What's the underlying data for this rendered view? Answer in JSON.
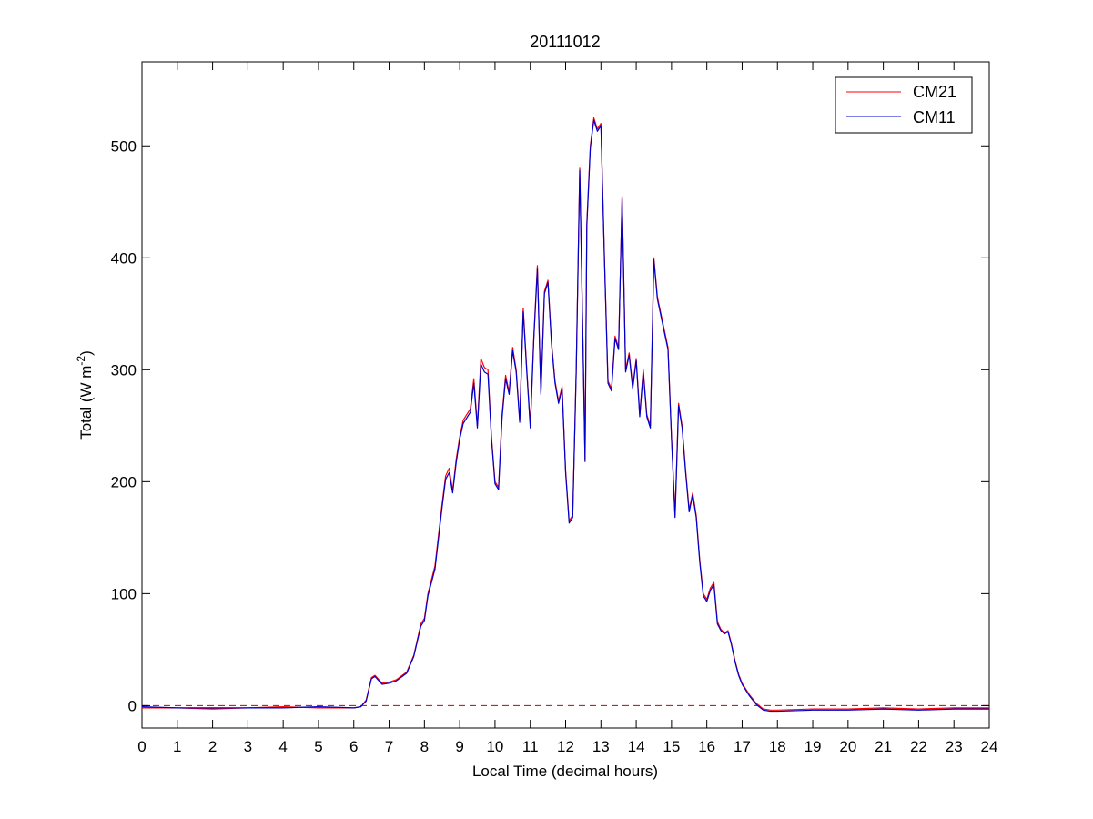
{
  "chart_data": {
    "type": "line",
    "title": "20111012",
    "xlabel": "Local Time (decimal hours)",
    "ylabel_main": "Total (W m",
    "ylabel_sup": "-2",
    "ylabel_close": ")",
    "xlim": [
      0,
      24
    ],
    "ylim": [
      -20,
      575
    ],
    "x_ticks": [
      0,
      1,
      2,
      3,
      4,
      5,
      6,
      7,
      8,
      9,
      10,
      11,
      12,
      13,
      14,
      15,
      16,
      17,
      18,
      19,
      20,
      21,
      22,
      23,
      24
    ],
    "y_ticks": [
      0,
      100,
      200,
      300,
      400,
      500
    ],
    "grid": false,
    "legend_position": "top-right",
    "reference_line": {
      "y": 0,
      "style": "dashed",
      "color": "#cc0000"
    },
    "series": [
      {
        "name": "CM21",
        "color": "#ff0000",
        "points": [
          [
            0,
            -2
          ],
          [
            1,
            -2
          ],
          [
            2,
            -3
          ],
          [
            3,
            -2
          ],
          [
            4,
            -1
          ],
          [
            5,
            -2
          ],
          [
            6,
            -2
          ],
          [
            6.2,
            -1
          ],
          [
            6.35,
            5
          ],
          [
            6.5,
            25
          ],
          [
            6.6,
            27
          ],
          [
            6.8,
            20
          ],
          [
            7.0,
            21
          ],
          [
            7.2,
            23
          ],
          [
            7.5,
            30
          ],
          [
            7.7,
            45
          ],
          [
            7.9,
            73
          ],
          [
            8.0,
            78
          ],
          [
            8.1,
            100
          ],
          [
            8.3,
            125
          ],
          [
            8.5,
            180
          ],
          [
            8.6,
            205
          ],
          [
            8.7,
            212
          ],
          [
            8.8,
            192
          ],
          [
            8.9,
            220
          ],
          [
            9.0,
            240
          ],
          [
            9.1,
            255
          ],
          [
            9.3,
            265
          ],
          [
            9.4,
            292
          ],
          [
            9.5,
            250
          ],
          [
            9.6,
            310
          ],
          [
            9.7,
            302
          ],
          [
            9.8,
            300
          ],
          [
            9.9,
            240
          ],
          [
            10.0,
            200
          ],
          [
            10.1,
            195
          ],
          [
            10.2,
            260
          ],
          [
            10.3,
            295
          ],
          [
            10.4,
            280
          ],
          [
            10.5,
            320
          ],
          [
            10.6,
            300
          ],
          [
            10.7,
            255
          ],
          [
            10.8,
            355
          ],
          [
            10.9,
            300
          ],
          [
            11.0,
            250
          ],
          [
            11.1,
            330
          ],
          [
            11.2,
            393
          ],
          [
            11.3,
            280
          ],
          [
            11.4,
            370
          ],
          [
            11.5,
            380
          ],
          [
            11.6,
            325
          ],
          [
            11.7,
            290
          ],
          [
            11.8,
            272
          ],
          [
            11.9,
            285
          ],
          [
            12.0,
            210
          ],
          [
            12.1,
            165
          ],
          [
            12.2,
            170
          ],
          [
            12.3,
            300
          ],
          [
            12.4,
            480
          ],
          [
            12.5,
            310
          ],
          [
            12.55,
            220
          ],
          [
            12.6,
            430
          ],
          [
            12.7,
            500
          ],
          [
            12.8,
            525
          ],
          [
            12.9,
            515
          ],
          [
            13.0,
            520
          ],
          [
            13.1,
            400
          ],
          [
            13.2,
            290
          ],
          [
            13.3,
            283
          ],
          [
            13.4,
            330
          ],
          [
            13.5,
            320
          ],
          [
            13.6,
            455
          ],
          [
            13.7,
            300
          ],
          [
            13.8,
            315
          ],
          [
            13.9,
            285
          ],
          [
            14.0,
            310
          ],
          [
            14.1,
            260
          ],
          [
            14.2,
            300
          ],
          [
            14.3,
            260
          ],
          [
            14.4,
            250
          ],
          [
            14.5,
            400
          ],
          [
            14.6,
            365
          ],
          [
            14.7,
            350
          ],
          [
            14.8,
            335
          ],
          [
            14.9,
            320
          ],
          [
            15.0,
            240
          ],
          [
            15.1,
            170
          ],
          [
            15.2,
            270
          ],
          [
            15.3,
            250
          ],
          [
            15.4,
            210
          ],
          [
            15.5,
            175
          ],
          [
            15.6,
            190
          ],
          [
            15.7,
            170
          ],
          [
            15.8,
            130
          ],
          [
            15.9,
            100
          ],
          [
            16.0,
            95
          ],
          [
            16.1,
            105
          ],
          [
            16.2,
            110
          ],
          [
            16.3,
            75
          ],
          [
            16.4,
            68
          ],
          [
            16.5,
            65
          ],
          [
            16.6,
            67
          ],
          [
            16.7,
            55
          ],
          [
            16.8,
            40
          ],
          [
            16.9,
            28
          ],
          [
            17.0,
            20
          ],
          [
            17.2,
            10
          ],
          [
            17.4,
            2
          ],
          [
            17.6,
            -3
          ],
          [
            17.8,
            -4
          ],
          [
            18,
            -4
          ],
          [
            19,
            -3
          ],
          [
            20,
            -3
          ],
          [
            21,
            -2
          ],
          [
            22,
            -3
          ],
          [
            23,
            -2
          ],
          [
            24,
            -2
          ]
        ]
      },
      {
        "name": "CM11",
        "color": "#0000cc",
        "points": [
          [
            0,
            -1
          ],
          [
            1,
            -2
          ],
          [
            2,
            -2
          ],
          [
            3,
            -2
          ],
          [
            4,
            -2
          ],
          [
            5,
            -1
          ],
          [
            6,
            -2
          ],
          [
            6.2,
            -1
          ],
          [
            6.35,
            4
          ],
          [
            6.5,
            24
          ],
          [
            6.6,
            26
          ],
          [
            6.8,
            19
          ],
          [
            7.0,
            20
          ],
          [
            7.2,
            22
          ],
          [
            7.5,
            29
          ],
          [
            7.7,
            44
          ],
          [
            7.9,
            71
          ],
          [
            8.0,
            76
          ],
          [
            8.1,
            98
          ],
          [
            8.3,
            122
          ],
          [
            8.5,
            177
          ],
          [
            8.6,
            202
          ],
          [
            8.7,
            208
          ],
          [
            8.8,
            190
          ],
          [
            8.9,
            217
          ],
          [
            9.0,
            238
          ],
          [
            9.1,
            252
          ],
          [
            9.3,
            262
          ],
          [
            9.4,
            288
          ],
          [
            9.5,
            248
          ],
          [
            9.6,
            305
          ],
          [
            9.7,
            298
          ],
          [
            9.8,
            296
          ],
          [
            9.9,
            238
          ],
          [
            10.0,
            198
          ],
          [
            10.1,
            193
          ],
          [
            10.2,
            257
          ],
          [
            10.3,
            292
          ],
          [
            10.4,
            278
          ],
          [
            10.5,
            317
          ],
          [
            10.6,
            298
          ],
          [
            10.7,
            253
          ],
          [
            10.8,
            352
          ],
          [
            10.9,
            298
          ],
          [
            11.0,
            248
          ],
          [
            11.1,
            328
          ],
          [
            11.2,
            390
          ],
          [
            11.3,
            278
          ],
          [
            11.4,
            368
          ],
          [
            11.5,
            378
          ],
          [
            11.6,
            323
          ],
          [
            11.7,
            288
          ],
          [
            11.8,
            270
          ],
          [
            11.9,
            283
          ],
          [
            12.0,
            208
          ],
          [
            12.1,
            163
          ],
          [
            12.2,
            168
          ],
          [
            12.3,
            298
          ],
          [
            12.4,
            478
          ],
          [
            12.5,
            308
          ],
          [
            12.55,
            218
          ],
          [
            12.6,
            428
          ],
          [
            12.7,
            498
          ],
          [
            12.8,
            523
          ],
          [
            12.9,
            513
          ],
          [
            13.0,
            518
          ],
          [
            13.1,
            398
          ],
          [
            13.2,
            288
          ],
          [
            13.3,
            281
          ],
          [
            13.4,
            328
          ],
          [
            13.5,
            318
          ],
          [
            13.6,
            453
          ],
          [
            13.7,
            298
          ],
          [
            13.8,
            313
          ],
          [
            13.9,
            283
          ],
          [
            14.0,
            308
          ],
          [
            14.1,
            258
          ],
          [
            14.2,
            298
          ],
          [
            14.3,
            258
          ],
          [
            14.4,
            248
          ],
          [
            14.5,
            398
          ],
          [
            14.6,
            363
          ],
          [
            14.7,
            348
          ],
          [
            14.8,
            333
          ],
          [
            14.9,
            318
          ],
          [
            15.0,
            238
          ],
          [
            15.1,
            168
          ],
          [
            15.2,
            268
          ],
          [
            15.3,
            248
          ],
          [
            15.4,
            208
          ],
          [
            15.5,
            173
          ],
          [
            15.6,
            188
          ],
          [
            15.7,
            168
          ],
          [
            15.8,
            128
          ],
          [
            15.9,
            98
          ],
          [
            16.0,
            93
          ],
          [
            16.1,
            103
          ],
          [
            16.2,
            108
          ],
          [
            16.3,
            73
          ],
          [
            16.4,
            67
          ],
          [
            16.5,
            64
          ],
          [
            16.6,
            66
          ],
          [
            16.7,
            54
          ],
          [
            16.8,
            39
          ],
          [
            16.9,
            27
          ],
          [
            17.0,
            19
          ],
          [
            17.2,
            9
          ],
          [
            17.4,
            1
          ],
          [
            17.6,
            -4
          ],
          [
            17.8,
            -5
          ],
          [
            18,
            -5
          ],
          [
            19,
            -4
          ],
          [
            20,
            -4
          ],
          [
            21,
            -3
          ],
          [
            22,
            -4
          ],
          [
            23,
            -3
          ],
          [
            24,
            -3
          ]
        ]
      }
    ]
  }
}
